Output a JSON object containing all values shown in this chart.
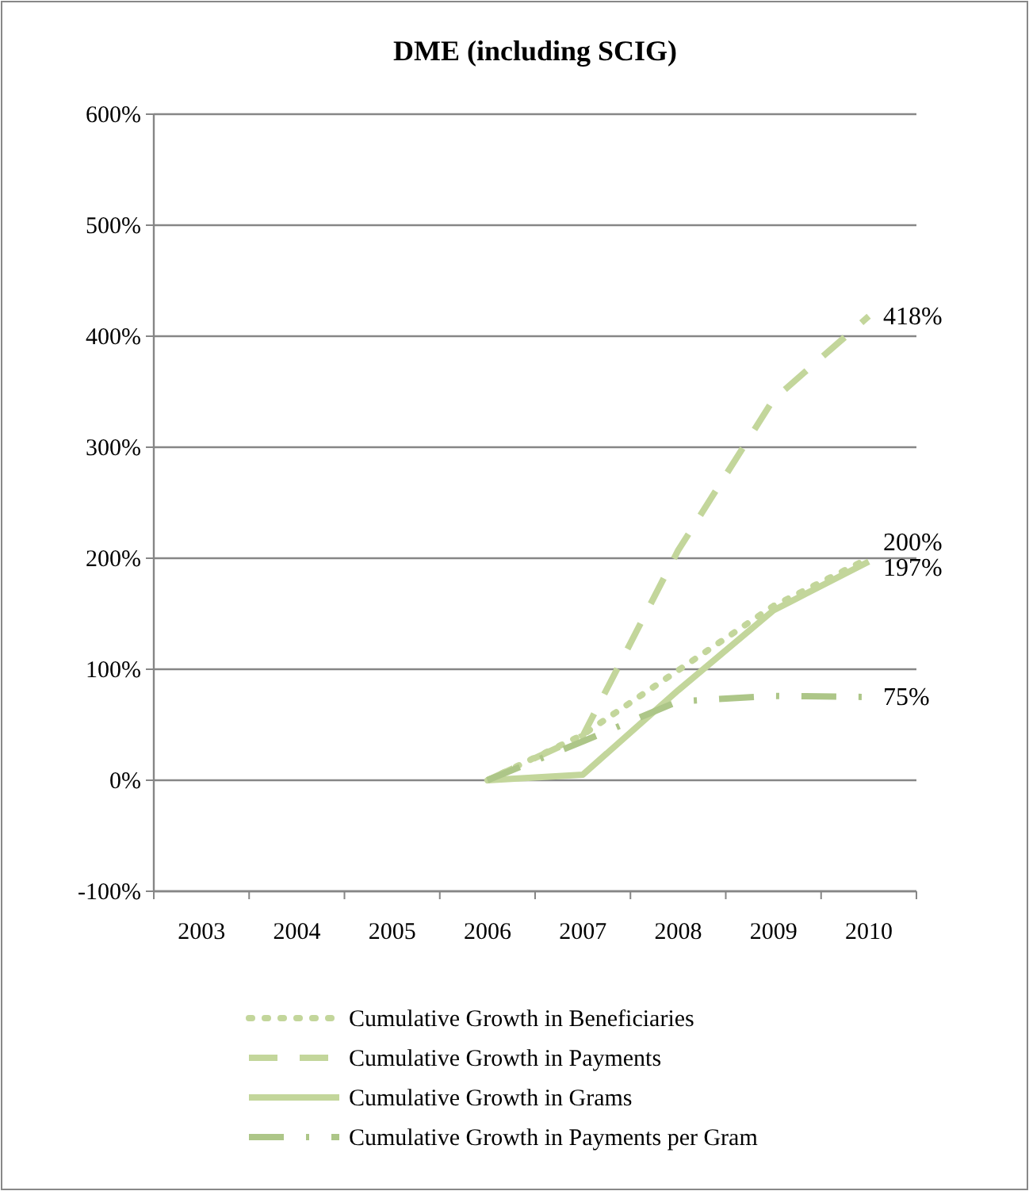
{
  "chart_data": {
    "type": "line",
    "title": "DME (including SCIG)",
    "categories": [
      "2003",
      "2004",
      "2005",
      "2006",
      "2007",
      "2008",
      "2009",
      "2010"
    ],
    "ylim": [
      -100,
      600
    ],
    "yticks": [
      {
        "value": -100,
        "label": "-100%"
      },
      {
        "value": 0,
        "label": "0%"
      },
      {
        "value": 100,
        "label": "100%"
      },
      {
        "value": 200,
        "label": "200%"
      },
      {
        "value": 300,
        "label": "300%"
      },
      {
        "value": 400,
        "label": "400%"
      },
      {
        "value": 500,
        "label": "500%"
      },
      {
        "value": 600,
        "label": "600%"
      }
    ],
    "grid": "y",
    "legend": "bottom",
    "marker": "none",
    "series": [
      {
        "name": "Cumulative Growth in Beneficiaries",
        "color": "#c3d69b",
        "line_style": "dotted",
        "values": [
          null,
          null,
          null,
          0,
          41,
          99,
          157,
          200
        ],
        "value_labels": [
          null,
          null,
          null,
          null,
          null,
          null,
          null,
          "200%"
        ]
      },
      {
        "name": "Cumulative Growth in Payments",
        "color": "#c3d69b",
        "line_style": "dashed",
        "values": [
          null,
          null,
          null,
          0,
          40,
          207,
          343,
          418
        ],
        "value_labels": [
          null,
          null,
          null,
          null,
          null,
          null,
          null,
          "418%"
        ]
      },
      {
        "name": "Cumulative Growth in Grams",
        "color": "#c3d69b",
        "line_style": "solid",
        "values": [
          null,
          null,
          null,
          0,
          5,
          81,
          153,
          197
        ],
        "value_labels": [
          null,
          null,
          null,
          null,
          null,
          null,
          null,
          "197%"
        ]
      },
      {
        "name": "Cumulative Growth in Payments per Gram",
        "color": "#adc688",
        "line_style": "dashdot",
        "values": [
          null,
          null,
          null,
          0,
          35,
          71,
          76,
          75
        ],
        "value_labels": [
          null,
          null,
          null,
          null,
          null,
          null,
          null,
          "75%"
        ]
      }
    ]
  }
}
